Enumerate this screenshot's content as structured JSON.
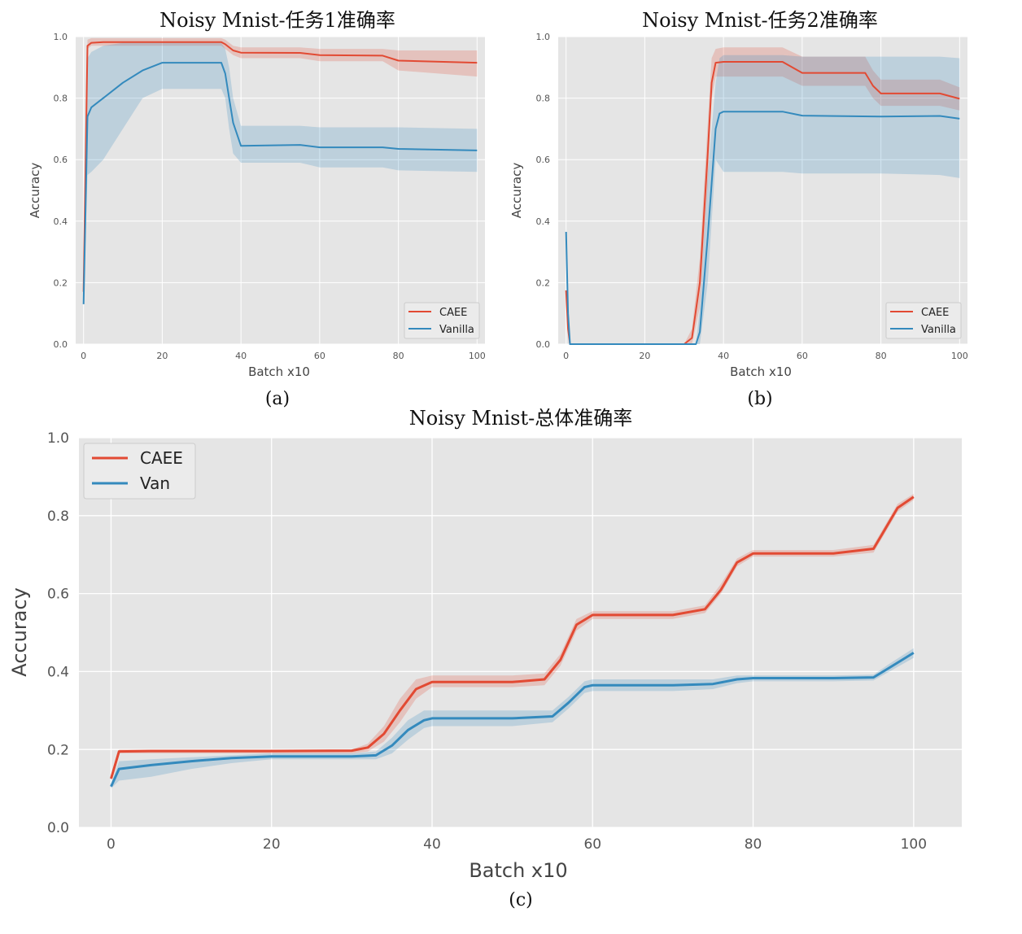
{
  "colors": {
    "caee": "#e24a33",
    "vanilla": "#348abd",
    "panel_bg": "#e5e5e5",
    "grid": "#ffffff"
  },
  "chart_data": [
    {
      "type": "line",
      "title": "Noisy Mnist-任务1准确率",
      "caption": "(a)",
      "xlabel": "Batch x10",
      "ylabel": "Accuracy",
      "xlim": [
        -2,
        102
      ],
      "ylim": [
        0,
        1.0
      ],
      "xticks": [
        "0",
        "20",
        "40",
        "60",
        "80",
        "100"
      ],
      "yticks": [
        "0.0",
        "0.2",
        "0.4",
        "0.6",
        "0.8",
        "1.0"
      ],
      "legend_position": "lower-right",
      "series": [
        {
          "name": "CAEE",
          "color": "caee",
          "x": [
            0,
            1,
            2,
            5,
            10,
            20,
            30,
            35,
            36,
            38,
            40,
            55,
            60,
            76,
            80,
            100
          ],
          "y": [
            0.17,
            0.97,
            0.98,
            0.982,
            0.982,
            0.982,
            0.982,
            0.982,
            0.975,
            0.955,
            0.948,
            0.947,
            0.94,
            0.938,
            0.922,
            0.915
          ],
          "band": [
            [
              0.15,
              0.18
            ],
            [
              0.96,
              0.99
            ],
            [
              0.97,
              0.995
            ],
            [
              0.97,
              0.995
            ],
            [
              0.97,
              0.995
            ],
            [
              0.97,
              0.995
            ],
            [
              0.97,
              0.995
            ],
            [
              0.97,
              0.995
            ],
            [
              0.96,
              0.99
            ],
            [
              0.94,
              0.97
            ],
            [
              0.93,
              0.965
            ],
            [
              0.93,
              0.965
            ],
            [
              0.92,
              0.96
            ],
            [
              0.92,
              0.96
            ],
            [
              0.89,
              0.955
            ],
            [
              0.87,
              0.955
            ]
          ]
        },
        {
          "name": "Vanilla",
          "color": "vanilla",
          "x": [
            0,
            1,
            2,
            5,
            10,
            15,
            20,
            25,
            30,
            35,
            36,
            37,
            38,
            40,
            55,
            60,
            76,
            80,
            100
          ],
          "y": [
            0.13,
            0.74,
            0.77,
            0.8,
            0.85,
            0.89,
            0.915,
            0.915,
            0.915,
            0.915,
            0.88,
            0.8,
            0.72,
            0.645,
            0.648,
            0.64,
            0.64,
            0.635,
            0.63
          ],
          "band": [
            [
              0.12,
              0.14
            ],
            [
              0.55,
              0.93
            ],
            [
              0.56,
              0.95
            ],
            [
              0.6,
              0.97
            ],
            [
              0.7,
              0.98
            ],
            [
              0.8,
              0.98
            ],
            [
              0.83,
              0.98
            ],
            [
              0.83,
              0.98
            ],
            [
              0.83,
              0.98
            ],
            [
              0.83,
              0.98
            ],
            [
              0.8,
              0.96
            ],
            [
              0.7,
              0.9
            ],
            [
              0.62,
              0.8
            ],
            [
              0.59,
              0.71
            ],
            [
              0.59,
              0.71
            ],
            [
              0.575,
              0.705
            ],
            [
              0.575,
              0.705
            ],
            [
              0.565,
              0.705
            ],
            [
              0.56,
              0.7
            ]
          ]
        }
      ]
    },
    {
      "type": "line",
      "title": "Noisy Mnist-任务2准确率",
      "caption": "(b)",
      "xlabel": "Batch x10",
      "ylabel": "Accuracy",
      "xlim": [
        -2,
        102
      ],
      "ylim": [
        0,
        1.0
      ],
      "xticks": [
        "0",
        "20",
        "40",
        "60",
        "80",
        "100"
      ],
      "yticks": [
        "0.0",
        "0.2",
        "0.4",
        "0.6",
        "0.8",
        "1.0"
      ],
      "legend_position": "lower-right",
      "series": [
        {
          "name": "CAEE",
          "color": "caee",
          "x": [
            0,
            0.5,
            1,
            30,
            32,
            34,
            36,
            37,
            38,
            40,
            55,
            60,
            76,
            78,
            80,
            95,
            100
          ],
          "y": [
            0.175,
            0.05,
            0.0,
            0.0,
            0.02,
            0.2,
            0.62,
            0.85,
            0.915,
            0.918,
            0.918,
            0.882,
            0.882,
            0.84,
            0.815,
            0.815,
            0.798
          ],
          "band": [
            [
              0.17,
              0.18
            ],
            [
              0.04,
              0.06
            ],
            [
              0.0,
              0.0
            ],
            [
              0.0,
              0.0
            ],
            [
              0.0,
              0.05
            ],
            [
              0.12,
              0.28
            ],
            [
              0.52,
              0.72
            ],
            [
              0.8,
              0.93
            ],
            [
              0.87,
              0.96
            ],
            [
              0.87,
              0.965
            ],
            [
              0.87,
              0.965
            ],
            [
              0.84,
              0.935
            ],
            [
              0.84,
              0.935
            ],
            [
              0.8,
              0.89
            ],
            [
              0.775,
              0.86
            ],
            [
              0.775,
              0.86
            ],
            [
              0.76,
              0.835
            ]
          ]
        },
        {
          "name": "Vanilla",
          "color": "vanilla",
          "x": [
            0,
            0.5,
            1,
            33,
            34,
            36,
            38,
            39,
            40,
            55,
            60,
            80,
            95,
            100
          ],
          "y": [
            0.365,
            0.1,
            0.0,
            0.0,
            0.04,
            0.35,
            0.7,
            0.75,
            0.756,
            0.756,
            0.743,
            0.74,
            0.742,
            0.733
          ],
          "band": [
            [
              0.35,
              0.38
            ],
            [
              0.05,
              0.15
            ],
            [
              0.0,
              0.0
            ],
            [
              0.0,
              0.0
            ],
            [
              0.0,
              0.12
            ],
            [
              0.2,
              0.55
            ],
            [
              0.6,
              0.85
            ],
            [
              0.58,
              0.93
            ],
            [
              0.56,
              0.94
            ],
            [
              0.56,
              0.94
            ],
            [
              0.555,
              0.935
            ],
            [
              0.555,
              0.935
            ],
            [
              0.55,
              0.935
            ],
            [
              0.54,
              0.93
            ]
          ]
        }
      ]
    },
    {
      "type": "line",
      "title": "Noisy Mnist-总体准确率",
      "caption": "(c)",
      "xlabel": "Batch x10",
      "ylabel": "Accuracy",
      "xlim": [
        -4,
        106
      ],
      "ylim": [
        0,
        1.0
      ],
      "xticks": [
        "0",
        "20",
        "40",
        "60",
        "80",
        "100"
      ],
      "yticks": [
        "0.0",
        "0.2",
        "0.4",
        "0.6",
        "0.8",
        "1.0"
      ],
      "legend_position": "top-left",
      "series": [
        {
          "name": "CAEE",
          "color": "caee",
          "x": [
            0,
            1,
            5,
            10,
            20,
            30,
            32,
            34,
            36,
            38,
            40,
            50,
            54,
            56,
            58,
            60,
            70,
            74,
            76,
            78,
            80,
            90,
            95,
            96,
            98,
            100
          ],
          "y": [
            0.125,
            0.195,
            0.196,
            0.196,
            0.196,
            0.197,
            0.205,
            0.24,
            0.3,
            0.355,
            0.373,
            0.373,
            0.38,
            0.43,
            0.52,
            0.545,
            0.545,
            0.56,
            0.61,
            0.68,
            0.703,
            0.703,
            0.715,
            0.75,
            0.82,
            0.848
          ],
          "band": [
            [
              0.12,
              0.13
            ],
            [
              0.19,
              0.2
            ],
            [
              0.19,
              0.2
            ],
            [
              0.19,
              0.2
            ],
            [
              0.19,
              0.2
            ],
            [
              0.19,
              0.2
            ],
            [
              0.195,
              0.215
            ],
            [
              0.22,
              0.26
            ],
            [
              0.27,
              0.33
            ],
            [
              0.33,
              0.38
            ],
            [
              0.36,
              0.39
            ],
            [
              0.36,
              0.39
            ],
            [
              0.365,
              0.395
            ],
            [
              0.415,
              0.445
            ],
            [
              0.505,
              0.535
            ],
            [
              0.535,
              0.555
            ],
            [
              0.535,
              0.555
            ],
            [
              0.55,
              0.57
            ],
            [
              0.6,
              0.625
            ],
            [
              0.67,
              0.69
            ],
            [
              0.695,
              0.712
            ],
            [
              0.695,
              0.712
            ],
            [
              0.705,
              0.725
            ],
            [
              0.74,
              0.76
            ],
            [
              0.81,
              0.83
            ],
            [
              0.84,
              0.856
            ]
          ]
        },
        {
          "name": "Van",
          "color": "vanilla",
          "x": [
            0,
            1,
            5,
            10,
            15,
            20,
            30,
            33,
            35,
            37,
            39,
            40,
            50,
            55,
            57,
            59,
            60,
            70,
            75,
            78,
            80,
            90,
            95,
            97,
            100
          ],
          "y": [
            0.105,
            0.15,
            0.16,
            0.17,
            0.178,
            0.182,
            0.182,
            0.185,
            0.21,
            0.25,
            0.275,
            0.28,
            0.28,
            0.285,
            0.32,
            0.36,
            0.365,
            0.365,
            0.368,
            0.38,
            0.383,
            0.383,
            0.385,
            0.41,
            0.448
          ],
          "band": [
            [
              0.1,
              0.11
            ],
            [
              0.12,
              0.17
            ],
            [
              0.13,
              0.175
            ],
            [
              0.15,
              0.18
            ],
            [
              0.165,
              0.185
            ],
            [
              0.175,
              0.19
            ],
            [
              0.175,
              0.19
            ],
            [
              0.175,
              0.195
            ],
            [
              0.19,
              0.23
            ],
            [
              0.225,
              0.275
            ],
            [
              0.255,
              0.3
            ],
            [
              0.26,
              0.3
            ],
            [
              0.26,
              0.3
            ],
            [
              0.27,
              0.3
            ],
            [
              0.305,
              0.335
            ],
            [
              0.345,
              0.375
            ],
            [
              0.35,
              0.38
            ],
            [
              0.35,
              0.38
            ],
            [
              0.355,
              0.38
            ],
            [
              0.37,
              0.39
            ],
            [
              0.375,
              0.39
            ],
            [
              0.375,
              0.39
            ],
            [
              0.377,
              0.392
            ],
            [
              0.4,
              0.42
            ],
            [
              0.435,
              0.46
            ]
          ]
        }
      ]
    }
  ]
}
